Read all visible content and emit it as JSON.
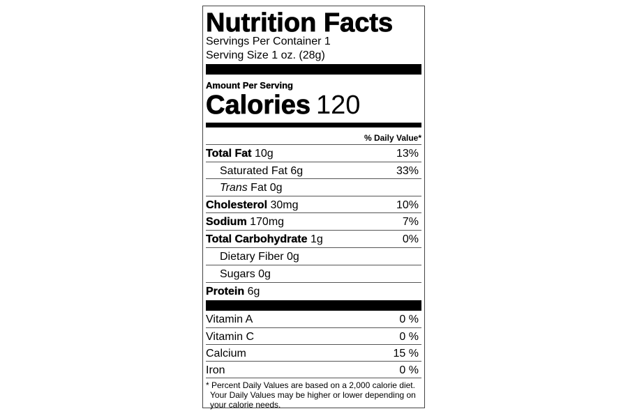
{
  "title": "Nutrition Facts",
  "servings_per_container": {
    "label": "Servings Per Container",
    "value": "1"
  },
  "serving_size": {
    "label": "Serving Size",
    "value": "1 oz. (28g)"
  },
  "amount_per_serving": "Amount Per Serving",
  "calories": {
    "label": "Calories",
    "value": "120"
  },
  "daily_value_header": "% Daily Value*",
  "nutrients": [
    {
      "label": "Total Fat",
      "amount": "10g",
      "dv": "13%"
    },
    {
      "label": "Saturated Fat",
      "amount": "6g",
      "dv": "33%"
    },
    {
      "label_italic": "Trans",
      "label": "Fat",
      "amount": "0g",
      "dv": ""
    },
    {
      "label": "Cholesterol",
      "amount": "30mg",
      "dv": "10%"
    },
    {
      "label": "Sodium",
      "amount": "170mg",
      "dv": "7%"
    },
    {
      "label": "Total Carbohydrate",
      "amount": "1g",
      "dv": "0%"
    },
    {
      "label": "Dietary Fiber",
      "amount": "0g",
      "dv": ""
    },
    {
      "label": "Sugars",
      "amount": "0g",
      "dv": ""
    },
    {
      "label": "Protein",
      "amount": "6g",
      "dv": ""
    }
  ],
  "vitamins": [
    {
      "label": "Vitamin A",
      "dv": "0 %"
    },
    {
      "label": "Vitamin C",
      "dv": "0 %"
    },
    {
      "label": "Calcium",
      "dv": "15 %"
    },
    {
      "label": "Iron",
      "dv": "0 %"
    }
  ],
  "footnote": [
    "* Percent Daily Values are based on a 2,000 calorie diet.",
    "Your Daily Values may be higher or lower depending on",
    "your calorie needs."
  ]
}
